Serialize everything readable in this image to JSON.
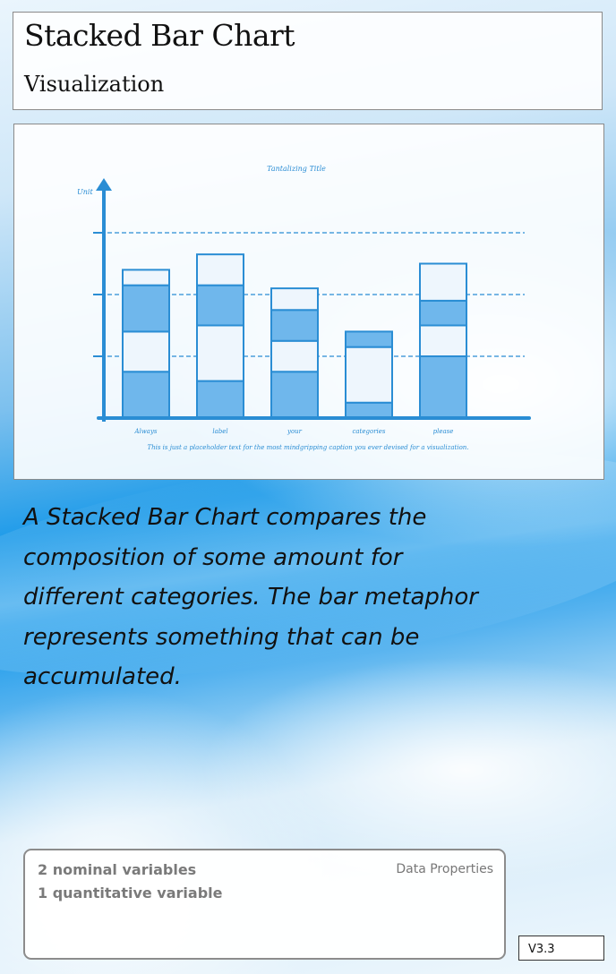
{
  "card": {
    "title": "Stacked Bar Chart",
    "subtitle": "Visualization",
    "description": "A Stacked Bar Chart compares the composition of some amount for different categories. The bar metaphor represents something that can be accumulated.",
    "data_properties_label": "Data Properties",
    "properties": [
      "2 nominal variables",
      "1 quantitative variable"
    ],
    "version": "V3.3"
  },
  "colors": {
    "accent": "#2a8dd4",
    "fill_dark": "#6fb7ec",
    "fill_light": "#eef6fd"
  },
  "chart_data": {
    "type": "bar",
    "stacked": true,
    "title": "Tantalizing Title",
    "ylabel": "Unit",
    "xlabel": "",
    "caption": "This is just a placeholder text for the most mindgripping caption you ever devised for a visualization.",
    "categories": [
      "Always",
      "label",
      "your",
      "categories",
      "please"
    ],
    "series": [
      {
        "values": [
          0.75,
          0.6,
          0.75,
          0.25,
          1.0
        ]
      },
      {
        "values": [
          0.65,
          0.9,
          0.5,
          0.9,
          0.5
        ]
      },
      {
        "values": [
          0.75,
          0.65,
          0.5,
          0.25,
          0.4
        ]
      },
      {
        "values": [
          0.25,
          0.5,
          0.35,
          0.0,
          0.6
        ]
      }
    ],
    "ylim": [
      0,
      3
    ],
    "grid": true
  }
}
